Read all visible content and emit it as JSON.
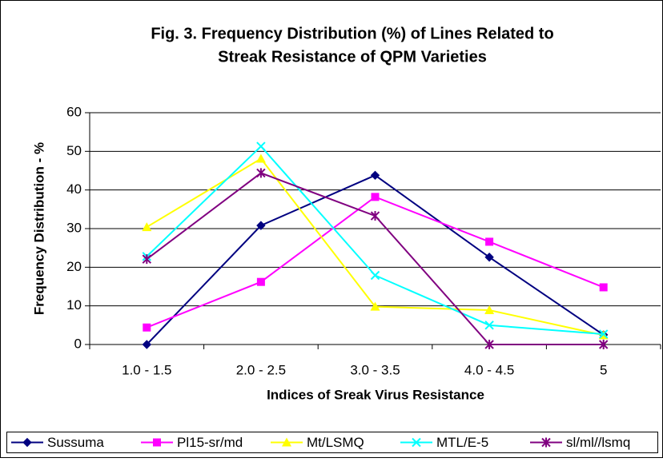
{
  "chart_data": {
    "type": "line",
    "title": [
      "Fig. 3. Frequency Distribution (%) of Lines Related to",
      "Streak Resistance of QPM Varieties"
    ],
    "x_label": "Indices of Sreak Virus Resistance",
    "y_label": "Frequency Distribution - %",
    "categories": [
      "1.0 - 1.5",
      "2.0 - 2.5",
      "3.0 - 3.5",
      "4.0 - 4.5",
      "5"
    ],
    "ylim": [
      0,
      60
    ],
    "yticks": [
      0,
      10,
      20,
      30,
      40,
      50,
      60
    ],
    "grid": true,
    "legend": "bottom",
    "series": [
      {
        "name": "Sussuma",
        "color": "#000080",
        "marker": "diamond",
        "values": [
          0,
          30.8,
          43.8,
          22.6,
          2.5
        ]
      },
      {
        "name": "Pl15-sr/md",
        "color": "#ff00ff",
        "marker": "square",
        "values": [
          4.4,
          16.2,
          38.2,
          26.6,
          14.8
        ]
      },
      {
        "name": "Mt/LSMQ",
        "color": "#ffff00",
        "marker": "triangle",
        "values": [
          30.4,
          48.1,
          9.8,
          8.9,
          2.4
        ]
      },
      {
        "name": "MTL/E-5",
        "color": "#00ffff",
        "marker": "x",
        "values": [
          22.8,
          51.3,
          17.9,
          5,
          2.7
        ]
      },
      {
        "name": "sl/ml//lsmq",
        "color": "#800080",
        "marker": "star",
        "values": [
          22.1,
          44.4,
          33.3,
          0,
          0
        ]
      }
    ]
  }
}
